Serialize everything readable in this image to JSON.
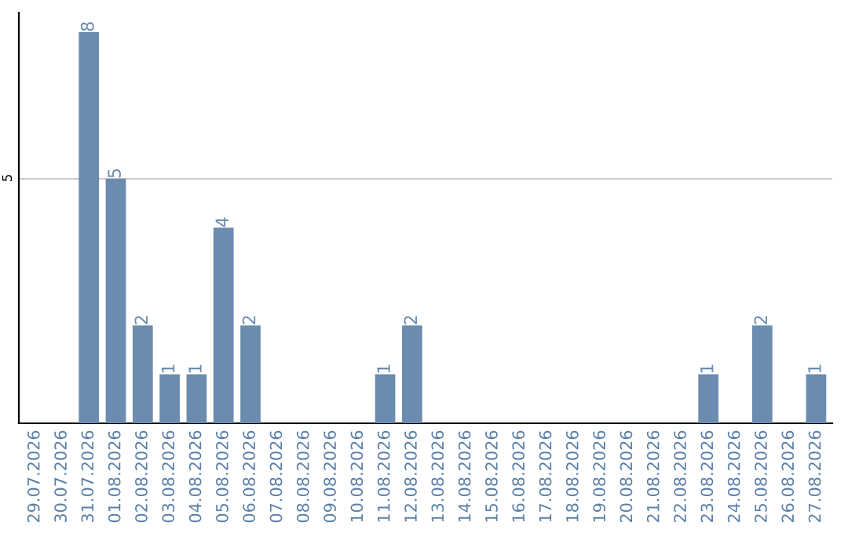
{
  "chart_data": {
    "type": "bar",
    "categories": [
      "29.07.2026",
      "30.07.2026",
      "31.07.2026",
      "01.08.2026",
      "02.08.2026",
      "03.08.2026",
      "04.08.2026",
      "05.08.2026",
      "06.08.2026",
      "07.08.2026",
      "08.08.2026",
      "09.08.2026",
      "10.08.2026",
      "11.08.2026",
      "12.08.2026",
      "13.08.2026",
      "14.08.2026",
      "15.08.2026",
      "16.08.2026",
      "17.08.2026",
      "18.08.2026",
      "19.08.2026",
      "20.08.2026",
      "21.08.2026",
      "22.08.2026",
      "23.08.2026",
      "24.08.2026",
      "25.08.2026",
      "26.08.2026",
      "27.08.2026"
    ],
    "values": [
      0,
      0,
      8,
      5,
      2,
      1,
      1,
      4,
      2,
      0,
      0,
      0,
      0,
      1,
      2,
      0,
      0,
      0,
      0,
      0,
      0,
      0,
      0,
      0,
      0,
      1,
      0,
      2,
      0,
      1
    ],
    "value_labels": [
      null,
      null,
      "8",
      "5",
      "2",
      "1",
      "1",
      "4",
      "2",
      null,
      null,
      null,
      null,
      "1",
      "2",
      null,
      null,
      null,
      null,
      null,
      null,
      null,
      null,
      null,
      null,
      "1",
      null,
      "2",
      null,
      "1"
    ],
    "color": "#6b8cae",
    "ylim": [
      0,
      8.4
    ],
    "yticks": [
      5
    ],
    "grid": "y"
  }
}
